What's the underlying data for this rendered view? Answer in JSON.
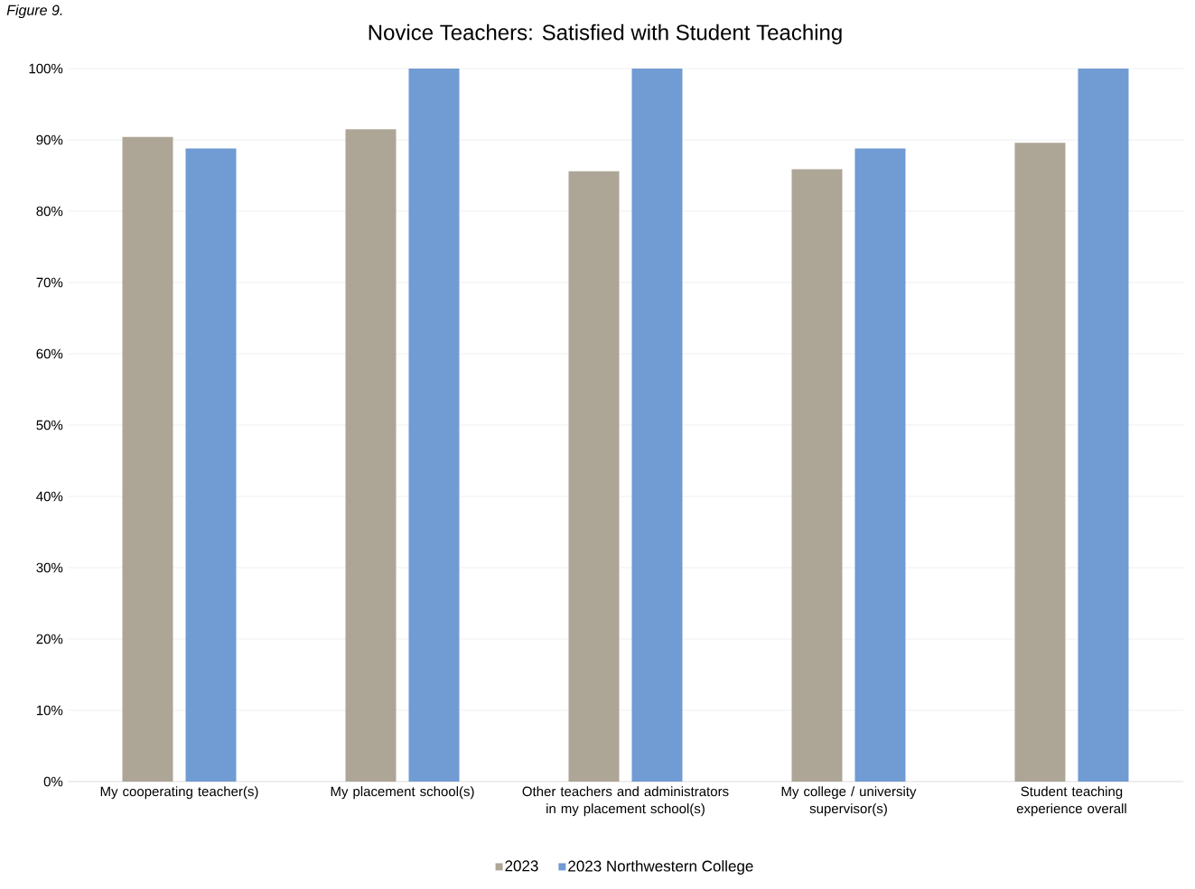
{
  "chart_data": {
    "type": "bar",
    "title": "Novice Teachers: Satisfied with Student Teaching",
    "annotations": [
      "Figure 9."
    ],
    "categories": [
      "My cooperating teacher(s)",
      "My placement school(s)",
      "Other teachers and administrators in my placement school(s)",
      "My college / university supervisor(s)",
      "Student teaching experience overall"
    ],
    "series": [
      {
        "name": "2023",
        "color": "#ada596",
        "values": [
          90.4,
          91.5,
          85.6,
          85.9,
          89.6
        ]
      },
      {
        "name": "2023 Northwestern College",
        "color": "#709bd3",
        "values": [
          88.8,
          100,
          100,
          88.8,
          100
        ]
      }
    ],
    "ylim": [
      0,
      100
    ],
    "yticks": [
      {
        "value": 0,
        "label": "0%"
      },
      {
        "value": 10,
        "label": "10%"
      },
      {
        "value": 20,
        "label": "20%"
      },
      {
        "value": 30,
        "label": "30%"
      },
      {
        "value": 40,
        "label": "40%"
      },
      {
        "value": 50,
        "label": "50%"
      },
      {
        "value": 60,
        "label": "60%"
      },
      {
        "value": 70,
        "label": "70%"
      },
      {
        "value": 80,
        "label": "80%"
      },
      {
        "value": 90,
        "label": "90%"
      },
      {
        "value": 100,
        "label": "100%"
      }
    ],
    "grid": "y",
    "legend": "bottom"
  }
}
